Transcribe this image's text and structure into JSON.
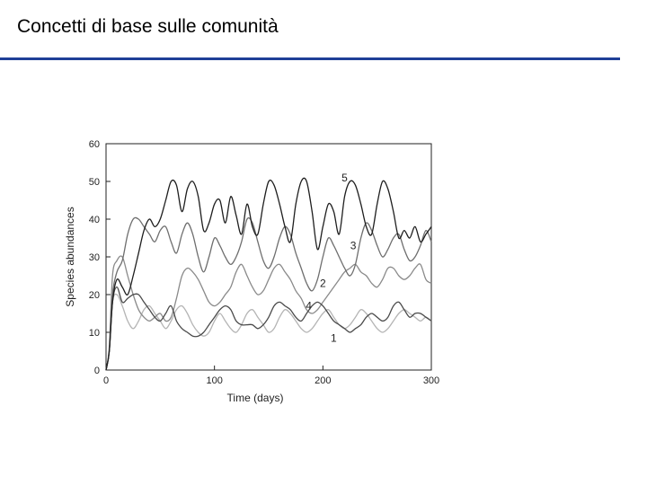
{
  "slide": {
    "title": "Concetti di base sulle comunità",
    "rule_color": "#1f3f97"
  },
  "chart_data": {
    "type": "line",
    "title": "",
    "xlabel": "Time (days)",
    "ylabel": "Species abundances",
    "xlim": [
      0,
      300
    ],
    "ylim": [
      0,
      60
    ],
    "xticks": [
      0,
      100,
      200,
      300
    ],
    "yticks": [
      0,
      10,
      20,
      30,
      40,
      50,
      60
    ],
    "grid": false,
    "legend": "none",
    "series": [
      {
        "name": "1",
        "color": "#b4b4b4",
        "x": [
          0,
          3,
          6,
          10,
          15,
          20,
          25,
          30,
          35,
          40,
          45,
          50,
          55,
          60,
          65,
          70,
          75,
          80,
          85,
          90,
          95,
          100,
          105,
          110,
          115,
          120,
          125,
          130,
          135,
          140,
          145,
          150,
          155,
          160,
          165,
          170,
          175,
          180,
          185,
          190,
          195,
          200,
          205,
          210,
          215,
          220,
          225,
          230,
          235,
          240,
          245,
          250,
          255,
          260,
          265,
          270,
          275,
          280,
          285,
          290,
          295,
          300
        ],
        "y": [
          0,
          5,
          18,
          20,
          17,
          13,
          11,
          13,
          16,
          17,
          15,
          13,
          11,
          13,
          16,
          17,
          15,
          12,
          10,
          9,
          10,
          13,
          15,
          13,
          11,
          10,
          12,
          15,
          16,
          14,
          12,
          10,
          11,
          14,
          16,
          15,
          13,
          11,
          10,
          11,
          13,
          15,
          16,
          14,
          12,
          11,
          12,
          14,
          16,
          15,
          13,
          11,
          10,
          11,
          13,
          15,
          16,
          15,
          14,
          13,
          14,
          13
        ]
      },
      {
        "name": "2",
        "color": "#8a8a8a",
        "x": [
          0,
          3,
          6,
          10,
          15,
          20,
          25,
          30,
          35,
          40,
          45,
          50,
          55,
          60,
          65,
          70,
          75,
          80,
          85,
          90,
          95,
          100,
          105,
          110,
          115,
          120,
          125,
          130,
          135,
          140,
          145,
          150,
          155,
          160,
          165,
          170,
          175,
          180,
          185,
          190,
          195,
          200,
          205,
          210,
          215,
          220,
          225,
          230,
          235,
          240,
          245,
          250,
          255,
          260,
          265,
          270,
          275,
          280,
          285,
          290,
          295,
          300
        ],
        "y": [
          0,
          6,
          25,
          29,
          30,
          25,
          20,
          16,
          14,
          13,
          14,
          15,
          13,
          14,
          19,
          25,
          27,
          26,
          24,
          21,
          18,
          17,
          18,
          20,
          22,
          26,
          28,
          25,
          22,
          20,
          21,
          24,
          27,
          28,
          26,
          24,
          21,
          19,
          16,
          15,
          16,
          18,
          20,
          22,
          24,
          26,
          27,
          28,
          26,
          25,
          23,
          22,
          24,
          27,
          27,
          25,
          24,
          25,
          27,
          28,
          24,
          23
        ]
      },
      {
        "name": "3",
        "color": "#6e6e6e",
        "x": [
          0,
          3,
          6,
          10,
          15,
          20,
          25,
          30,
          35,
          40,
          45,
          50,
          55,
          60,
          65,
          70,
          75,
          80,
          85,
          90,
          95,
          100,
          105,
          110,
          115,
          120,
          125,
          130,
          135,
          140,
          145,
          150,
          155,
          160,
          165,
          170,
          175,
          180,
          185,
          190,
          195,
          200,
          205,
          210,
          215,
          220,
          225,
          230,
          235,
          240,
          245,
          250,
          255,
          260,
          265,
          270,
          275,
          280,
          285,
          290,
          295,
          300
        ],
        "y": [
          0,
          5,
          20,
          26,
          29,
          36,
          40,
          40,
          38,
          36,
          34,
          37,
          38,
          34,
          31,
          36,
          39,
          36,
          30,
          26,
          30,
          35,
          33,
          30,
          28,
          30,
          34,
          40,
          39,
          34,
          29,
          27,
          30,
          35,
          38,
          36,
          31,
          27,
          23,
          21,
          24,
          30,
          35,
          33,
          30,
          27,
          25,
          28,
          35,
          39,
          37,
          33,
          30,
          32,
          35,
          36,
          32,
          29,
          30,
          33,
          37,
          34
        ]
      },
      {
        "name": "4",
        "color": "#4a4a4a",
        "x": [
          0,
          3,
          6,
          10,
          15,
          20,
          25,
          30,
          35,
          40,
          45,
          50,
          55,
          60,
          65,
          70,
          75,
          80,
          85,
          90,
          95,
          100,
          105,
          110,
          115,
          120,
          125,
          130,
          135,
          140,
          145,
          150,
          155,
          160,
          165,
          170,
          175,
          180,
          185,
          190,
          195,
          200,
          205,
          210,
          215,
          220,
          225,
          230,
          235,
          240,
          245,
          250,
          255,
          260,
          265,
          270,
          275,
          280,
          285,
          290,
          295,
          300
        ],
        "y": [
          0,
          5,
          18,
          22,
          18,
          19,
          20,
          20,
          18,
          16,
          14,
          13,
          15,
          17,
          13,
          11,
          10,
          9,
          9,
          10,
          12,
          14,
          16,
          17,
          16,
          13,
          12,
          12,
          12,
          11,
          12,
          14,
          17,
          18,
          17,
          16,
          14,
          13,
          15,
          17,
          18,
          17,
          15,
          13,
          12,
          11,
          10,
          11,
          12,
          14,
          15,
          14,
          13,
          14,
          17,
          18,
          16,
          14,
          15,
          15,
          14,
          13
        ]
      },
      {
        "name": "5",
        "color": "#1e1e1e",
        "x": [
          0,
          3,
          6,
          10,
          15,
          20,
          25,
          30,
          35,
          40,
          45,
          50,
          55,
          60,
          65,
          70,
          75,
          80,
          85,
          90,
          95,
          100,
          105,
          110,
          115,
          120,
          125,
          130,
          135,
          140,
          145,
          150,
          155,
          160,
          165,
          170,
          175,
          180,
          185,
          190,
          195,
          200,
          205,
          210,
          215,
          220,
          225,
          230,
          235,
          240,
          245,
          250,
          255,
          260,
          265,
          270,
          275,
          280,
          285,
          290,
          295,
          300
        ],
        "y": [
          0,
          5,
          18,
          24,
          22,
          20,
          25,
          31,
          37,
          40,
          38,
          40,
          45,
          50,
          49,
          42,
          48,
          50,
          46,
          37,
          39,
          44,
          45,
          39,
          46,
          41,
          36,
          44,
          38,
          36,
          44,
          50,
          49,
          44,
          38,
          34,
          44,
          50,
          50,
          42,
          32,
          38,
          44,
          42,
          36,
          46,
          50,
          49,
          44,
          38,
          36,
          44,
          50,
          48,
          42,
          35,
          37,
          35,
          38,
          34,
          36,
          38
        ]
      }
    ],
    "annotations": [
      {
        "text": "5",
        "x": 220,
        "y": 51
      },
      {
        "text": "3",
        "x": 228,
        "y": 33
      },
      {
        "text": "2",
        "x": 200,
        "y": 23
      },
      {
        "text": "4",
        "x": 187,
        "y": 17
      },
      {
        "text": "1",
        "x": 210,
        "y": 8.5
      }
    ]
  }
}
